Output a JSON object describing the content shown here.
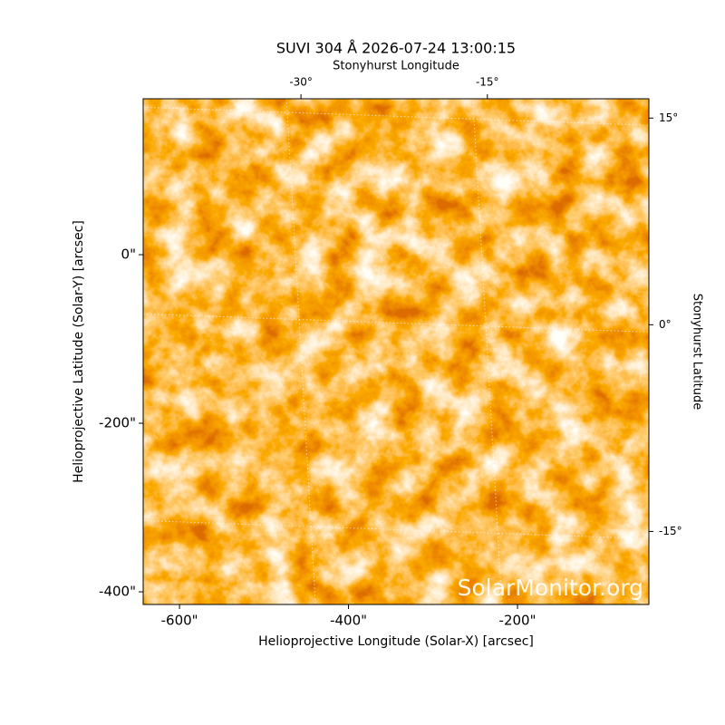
{
  "chart_data": {
    "type": "image",
    "title": "SUVI 304 Å 2026-07-24 13:00:15",
    "x_label": "Helioprojective Longitude (Solar-X) [arcsec]",
    "y_label": "Helioprojective Latitude (Solar-Y) [arcsec]",
    "x2_label": "Stonyhurst Longitude",
    "y2_label": "Stonyhurst Latitude",
    "annotation": "SolarMonitor.org",
    "xlim": [
      -643,
      -44.5
    ],
    "xticks": [
      {
        "value": -600,
        "label": "-600\""
      },
      {
        "value": -400,
        "label": "-400\""
      },
      {
        "value": -200,
        "label": "-200\""
      }
    ],
    "ylim": [
      -415,
      185
    ],
    "yticks": [
      {
        "value": 0,
        "label": "0\""
      },
      {
        "value": -200,
        "label": "-200\""
      },
      {
        "value": -400,
        "label": "-400\""
      }
    ],
    "x2lim": [
      -42.7,
      -2
    ],
    "x2ticks": [
      {
        "value": -30,
        "label": "-30°"
      },
      {
        "value": -15,
        "label": "-15°"
      }
    ],
    "y2lim": [
      -20.3,
      16.4
    ],
    "y2ticks": [
      {
        "value": 15,
        "label": "15°"
      },
      {
        "value": 0,
        "label": "0°"
      },
      {
        "value": -15,
        "label": "-15°"
      }
    ],
    "grid": true
  }
}
